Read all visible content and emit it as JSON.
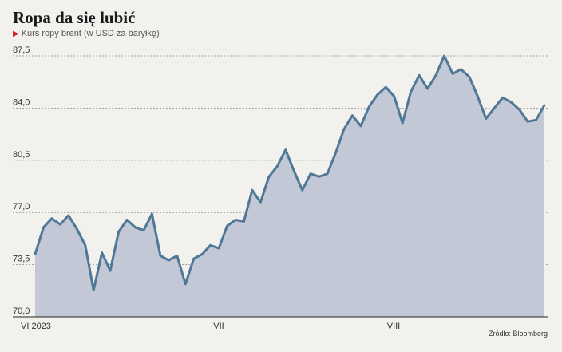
{
  "header": {
    "title": "Ropa da się lubić",
    "subtitle": "Kurs ropy brent (w USD za baryłkę)"
  },
  "footer": {
    "source": "Źródło: Bloomberg"
  },
  "colors": {
    "line": "#4f7896",
    "area": "#c3c8d6",
    "grid": "#8a8a8a",
    "marker": "#d8222a"
  },
  "chart_data": {
    "type": "area",
    "title": "Ropa da się lubić",
    "subtitle": "Kurs ropy brent (w USD za baryłkę)",
    "ylim": [
      70.0,
      87.5
    ],
    "yticks": [
      "87,5",
      "84,0",
      "80,5",
      "77,0",
      "73,5",
      "70,0"
    ],
    "xticks": [
      "VI 2023",
      "VII",
      "VIII"
    ],
    "grid": true,
    "values": [
      74.2,
      76.0,
      76.6,
      76.2,
      76.8,
      75.9,
      74.8,
      71.8,
      74.3,
      73.1,
      75.7,
      76.5,
      76.0,
      75.8,
      76.9,
      74.1,
      73.8,
      74.1,
      72.2,
      73.9,
      74.2,
      74.8,
      74.6,
      76.1,
      76.5,
      76.4,
      78.5,
      77.7,
      79.4,
      80.1,
      81.2,
      79.8,
      78.5,
      79.6,
      79.4,
      79.6,
      81.0,
      82.6,
      83.5,
      82.8,
      84.1,
      84.9,
      85.4,
      84.8,
      83.0,
      85.1,
      86.2,
      85.3,
      86.2,
      87.5,
      86.3,
      86.6,
      86.1,
      84.8,
      83.3,
      84.0,
      84.7,
      84.4,
      83.9,
      83.1,
      83.2,
      84.2
    ]
  }
}
